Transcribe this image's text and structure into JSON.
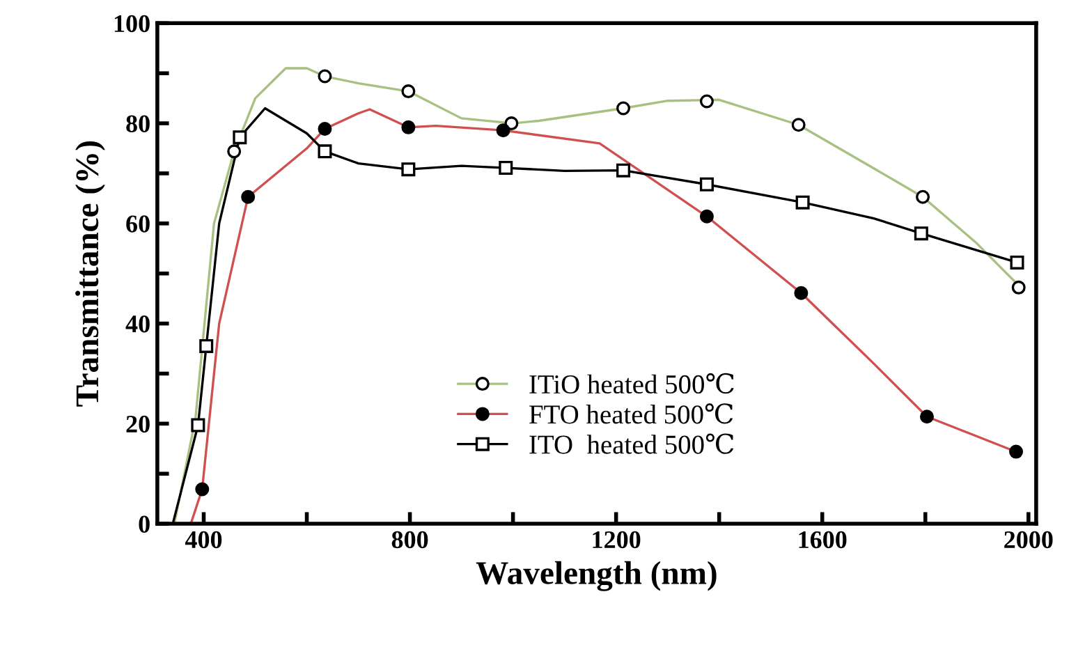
{
  "chart_data": {
    "type": "line",
    "xlabel": "Wavelength (nm)",
    "ylabel": "Transmittance (%)",
    "xlim": [
      310,
      2015
    ],
    "ylim": [
      0,
      100
    ],
    "xticks": [
      400,
      {
        "value": 600,
        "label": null
      },
      800,
      {
        "value": 1000,
        "label": null
      },
      1200,
      {
        "value": 1400,
        "label": null
      },
      1600,
      {
        "value": 1800,
        "label": null
      },
      2000
    ],
    "yticks": [
      0,
      {
        "value": 10,
        "label": null
      },
      20,
      {
        "value": 30,
        "label": null
      },
      40,
      {
        "value": 50,
        "label": null
      },
      60,
      {
        "value": 70,
        "label": null
      },
      80,
      {
        "value": 90,
        "label": null
      },
      100
    ],
    "grid": false,
    "legend": "bottom",
    "line_style": "solid",
    "series": [
      {
        "color": "#a8c080",
        "marker": "none",
        "x": [
          343,
          384,
          420,
          459,
          500,
          559,
          600,
          635,
          700,
          797,
          900,
          1000,
          1050,
          1214,
          1300,
          1400,
          1554,
          1700,
          1795,
          1900,
          1985
        ],
        "values": [
          0,
          21,
          60,
          74.4,
          85,
          91,
          91,
          89.4,
          88,
          86.4,
          81,
          80,
          80.5,
          83,
          84.5,
          84.7,
          79.7,
          71,
          65.3,
          56,
          47.2
        ]
      },
      {
        "type": "scatter",
        "name": "ITiO heated 500℃",
        "color": "#ffffff",
        "marker": "circle",
        "x": [
          459,
          635,
          797,
          997,
          1214,
          1376,
          1554,
          1795,
          1981
        ],
        "values": [
          74.4,
          89.4,
          86.4,
          80,
          83,
          84.4,
          79.7,
          65.3,
          47.2
        ]
      },
      {
        "color": "#d05050",
        "marker": "none",
        "x": [
          375,
          397,
          430,
          486,
          600,
          635,
          700,
          722,
          797,
          850,
          981,
          1168,
          1376,
          1559,
          1700,
          1803,
          1976
        ],
        "values": [
          0,
          6.9,
          40,
          65.3,
          75,
          78.9,
          82,
          82.8,
          79.2,
          79.5,
          78.6,
          76,
          61.4,
          46.1,
          32,
          21.4,
          14.4
        ]
      },
      {
        "type": "scatter",
        "name": "FTO heated 500℃",
        "color": "#000000",
        "marker": "circle",
        "x": [
          397,
          486,
          635,
          797,
          981,
          1376,
          1559,
          1803,
          1976
        ],
        "values": [
          6.9,
          65.3,
          78.9,
          79.2,
          78.6,
          61.4,
          46.1,
          21.4,
          14.4
        ]
      },
      {
        "color": "#000000",
        "marker": "none",
        "x": [
          340,
          389,
          405,
          430,
          470,
          519,
          600,
          635,
          700,
          797,
          900,
          986,
          1100,
          1214,
          1376,
          1562,
          1700,
          1792,
          1978
        ],
        "values": [
          0,
          19.7,
          35.5,
          60,
          77.2,
          83,
          78,
          74.4,
          72,
          70.8,
          71.5,
          71.1,
          70.5,
          70.6,
          67.8,
          64.2,
          61,
          58,
          52.2
        ]
      },
      {
        "type": "scatter",
        "name": "ITO  heated 500℃",
        "color": "#ffffff",
        "marker": "square",
        "x": [
          389,
          405,
          470,
          635,
          797,
          986,
          1214,
          1376,
          1562,
          1792,
          1978
        ],
        "values": [
          19.7,
          35.5,
          77.2,
          74.4,
          70.8,
          71.1,
          70.6,
          67.8,
          64.2,
          58,
          52.2
        ]
      }
    ]
  }
}
